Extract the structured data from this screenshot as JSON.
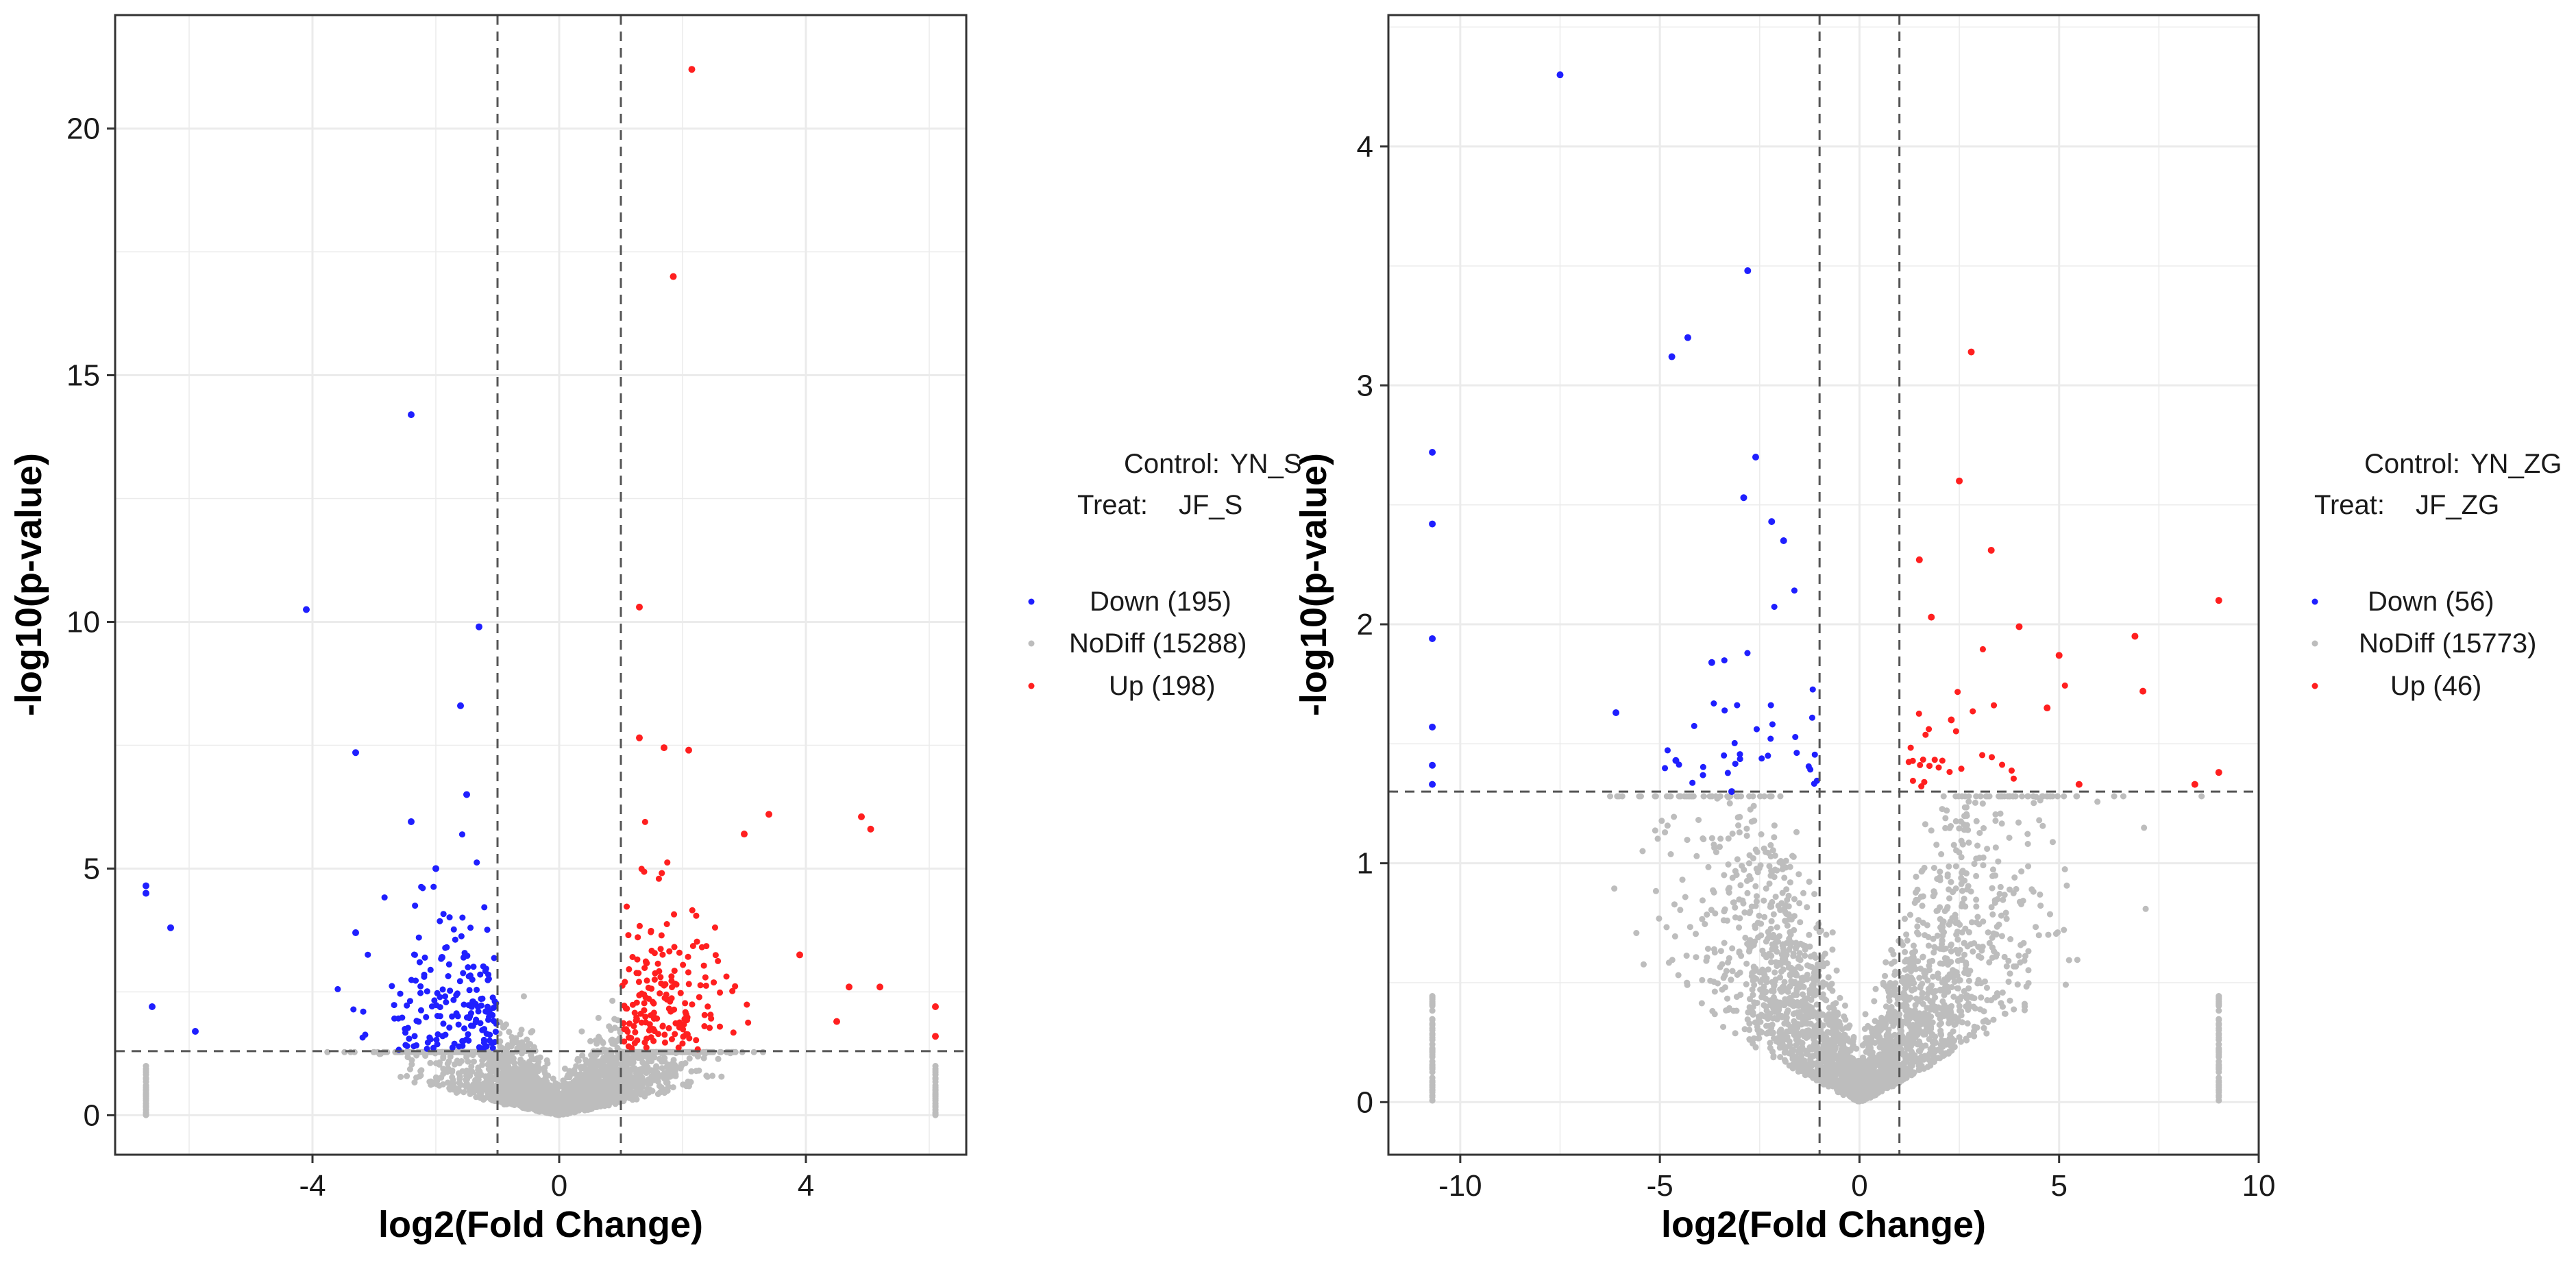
{
  "colors": {
    "down": "#1f1fff",
    "nodiff": "#bdbdbd",
    "up": "#ff1f1f",
    "grid": "#ebebeb",
    "frame": "#333333",
    "threshold": "#555555"
  },
  "chart_data": [
    {
      "type": "scatter",
      "title": "",
      "xlabel": "log2(Fold Change)",
      "ylabel": "-log10(p-value)",
      "xlim": [
        -7.2,
        6.6
      ],
      "ylim": [
        -0.8,
        22.3
      ],
      "xticks": [
        -4,
        0,
        4
      ],
      "xtick_labels": [
        "-4",
        "0",
        "4"
      ],
      "yticks": [
        0,
        5,
        10,
        15,
        20
      ],
      "ytick_labels": [
        "0",
        "5",
        "10",
        "15",
        "20"
      ],
      "fc_threshold": [
        -1,
        1
      ],
      "p_threshold": 1.3,
      "legend": {
        "control_label": "Control:",
        "control_value": "YN_S",
        "treat_label": "Treat:",
        "treat_value": "JF_S",
        "entries": [
          "Down (195)",
          "NoDiff (15288)",
          "Up (198)"
        ]
      },
      "series": [
        {
          "name": "Down",
          "count": 195,
          "highlight_points": [
            [
              -2.4,
              14.2
            ],
            [
              -4.1,
              10.25
            ],
            [
              -1.3,
              9.9
            ],
            [
              -3.3,
              7.35
            ],
            [
              -1.6,
              8.3
            ],
            [
              -2.4,
              5.95
            ],
            [
              -6.7,
              4.65
            ],
            [
              -6.7,
              4.5
            ],
            [
              -6.3,
              3.8
            ],
            [
              -3.3,
              3.7
            ],
            [
              -6.6,
              2.2
            ],
            [
              -5.9,
              1.7
            ],
            [
              -1.5,
              6.5
            ],
            [
              -2.0,
              5.0
            ],
            [
              -1.4,
              2.3
            ],
            [
              -1.9,
              3.2
            ]
          ]
        },
        {
          "name": "NoDiff",
          "count": 15288
        },
        {
          "name": "Up",
          "count": 198,
          "highlight_points": [
            [
              2.15,
              21.2
            ],
            [
              1.85,
              17.0
            ],
            [
              1.3,
              10.3
            ],
            [
              1.3,
              7.65
            ],
            [
              1.7,
              7.45
            ],
            [
              2.1,
              7.4
            ],
            [
              3.4,
              6.1
            ],
            [
              4.9,
              6.05
            ],
            [
              5.05,
              5.8
            ],
            [
              3.0,
              5.7
            ],
            [
              4.7,
              2.6
            ],
            [
              5.2,
              2.6
            ],
            [
              6.1,
              2.2
            ],
            [
              3.9,
              3.25
            ],
            [
              4.5,
              1.9
            ],
            [
              6.1,
              1.6
            ]
          ]
        }
      ]
    },
    {
      "type": "scatter",
      "title": "",
      "xlabel": "log2(Fold Change)",
      "ylabel": "-log10(p-value)",
      "xlim": [
        -11.8,
        10.0
      ],
      "ylim": [
        -0.22,
        4.55
      ],
      "xticks": [
        -10,
        -5,
        0,
        5,
        10
      ],
      "xtick_labels": [
        "-10",
        "-5",
        "0",
        "5",
        "10"
      ],
      "yticks": [
        0,
        1,
        2,
        3,
        4
      ],
      "ytick_labels": [
        "0",
        "1",
        "2",
        "3",
        "4"
      ],
      "fc_threshold": [
        -1,
        1
      ],
      "p_threshold": 1.3,
      "legend": {
        "control_label": "Control:",
        "control_value": "YN_ZG",
        "treat_label": "Treat:",
        "treat_value": "JF_ZG",
        "entries": [
          "Down (56)",
          "NoDiff (15773)",
          "Up (46)"
        ]
      },
      "series": [
        {
          "name": "Down",
          "count": 56,
          "highlight_points": [
            [
              -7.5,
              4.3
            ],
            [
              -2.8,
              3.48
            ],
            [
              -4.3,
              3.2
            ],
            [
              -4.7,
              3.12
            ],
            [
              -2.6,
              2.7
            ],
            [
              -2.9,
              2.53
            ],
            [
              -10.7,
              2.72
            ],
            [
              -10.7,
              2.42
            ],
            [
              -10.7,
              1.94
            ],
            [
              -10.7,
              1.57
            ],
            [
              -10.7,
              1.41
            ],
            [
              -10.7,
              1.33
            ],
            [
              -6.1,
              1.63
            ],
            [
              -3.7,
              1.84
            ],
            [
              -4.6,
              1.43
            ],
            [
              -3.2,
              1.3
            ],
            [
              -1.9,
              2.35
            ],
            [
              -2.2,
              2.43
            ]
          ]
        },
        {
          "name": "NoDiff",
          "count": 15773
        },
        {
          "name": "Up",
          "count": 46,
          "highlight_points": [
            [
              2.8,
              3.14
            ],
            [
              2.5,
              2.6
            ],
            [
              3.3,
              2.31
            ],
            [
              1.5,
              2.27
            ],
            [
              9.0,
              2.1
            ],
            [
              6.9,
              1.95
            ],
            [
              4.0,
              1.99
            ],
            [
              1.8,
              2.03
            ],
            [
              7.1,
              1.72
            ],
            [
              5.0,
              1.87
            ],
            [
              9.0,
              1.38
            ],
            [
              8.4,
              1.33
            ],
            [
              4.7,
              1.65
            ],
            [
              5.5,
              1.33
            ],
            [
              2.3,
              1.6
            ]
          ]
        }
      ]
    }
  ]
}
